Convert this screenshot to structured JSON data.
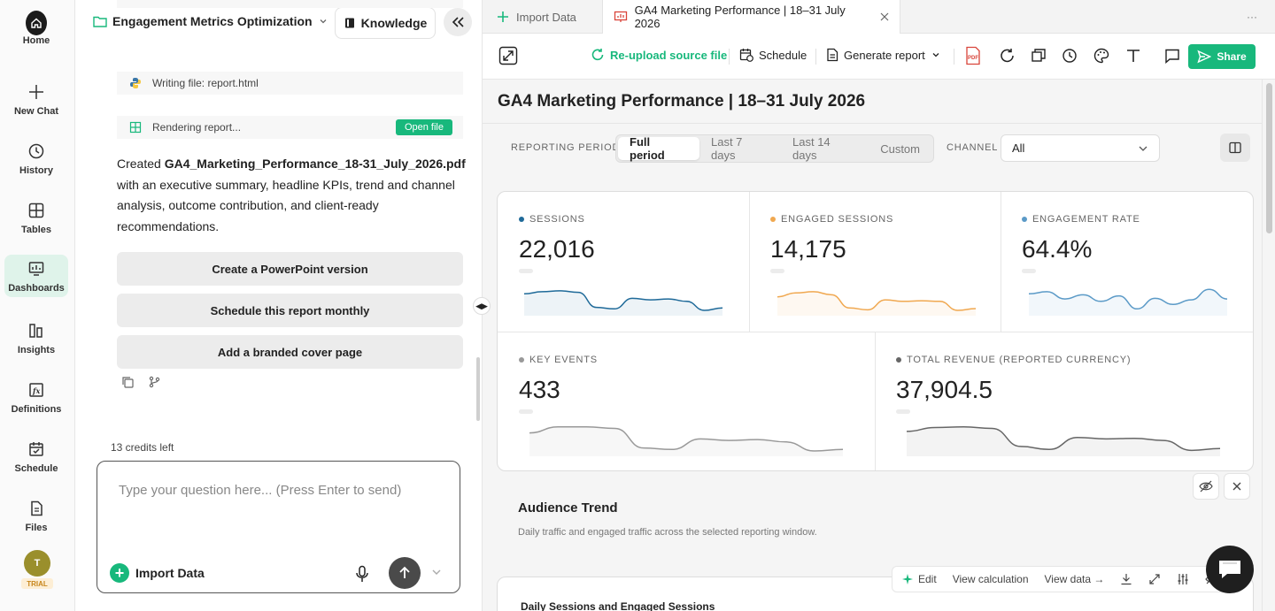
{
  "rail": {
    "items": [
      {
        "label": "Home",
        "icon": "home-icon"
      },
      {
        "label": "New Chat",
        "icon": "plus-icon"
      },
      {
        "label": "History",
        "icon": "history-icon"
      },
      {
        "label": "Tables",
        "icon": "table-icon"
      },
      {
        "label": "Dashboards",
        "icon": "dashboard-icon",
        "active": true
      },
      {
        "label": "Insights",
        "icon": "insights-icon"
      },
      {
        "label": "Definitions",
        "icon": "function-icon"
      },
      {
        "label": "Schedule",
        "icon": "calendar-icon"
      },
      {
        "label": "Files",
        "icon": "files-icon"
      }
    ],
    "avatar": "T",
    "trial": "TRIAL"
  },
  "chat": {
    "project": "Engagement Metrics Optimization",
    "knowledge": "Knowledge",
    "tool1": "Writing file: report.html",
    "tool2": "Rendering report...",
    "open_file": "Open file",
    "msg_pre": "Created ",
    "msg_bold": "GA4_Marketing_Performance_18-31_July_2026.pdf",
    "msg_post": " with an executive summary, headline KPIs, trend and channel analysis, outcome contribution, and client-ready recommendations.",
    "suggestions": [
      "Create a PowerPoint version",
      "Schedule this report monthly",
      "Add a branded cover page"
    ],
    "credits": "13 credits left",
    "placeholder": "Type your question here... (Press Enter to send)",
    "import": "Import Data"
  },
  "tabs": {
    "import": "Import Data",
    "report": "GA4 Marketing Performance | 18–31 July 2026",
    "more": "···"
  },
  "toolbar": {
    "reupload": "Re-upload source file",
    "schedule": "Schedule",
    "generate": "Generate report",
    "pdf": "PDF",
    "share": "Share"
  },
  "report": {
    "title": "GA4 Marketing Performance | 18–31 July 2026",
    "period_label": "REPORTING PERIOD",
    "periods": [
      "Full period",
      "Last 7 days",
      "Last 14 days",
      "Custom"
    ],
    "channel_label": "CHANNEL",
    "channel_value": "All"
  },
  "kpis": [
    {
      "label": "SESSIONS",
      "value": "22,016",
      "color": "#1f6a99",
      "trend": [
        0.55,
        0.62,
        0.65,
        0.6,
        0.1,
        0.05,
        0.4,
        0.35,
        0.38,
        0.3,
        0.0,
        0.08
      ]
    },
    {
      "label": "ENGAGED SESSIONS",
      "value": "14,175",
      "color": "#f0a850",
      "trend": [
        0.45,
        0.58,
        0.62,
        0.52,
        0.08,
        0.02,
        0.35,
        0.3,
        0.32,
        0.3,
        0.0,
        0.06
      ]
    },
    {
      "label": "ENGAGEMENT RATE",
      "value": "64.4%",
      "color": "#5b9ac7",
      "trend": [
        0.55,
        0.62,
        0.38,
        0.52,
        0.3,
        0.48,
        0.05,
        0.4,
        0.2,
        0.35,
        0.7,
        0.38
      ]
    },
    {
      "label": "KEY EVENTS",
      "value": "433",
      "color": "#999999",
      "trend": [
        0.6,
        0.8,
        0.8,
        0.75,
        0.1,
        0.05,
        0.4,
        0.35,
        0.38,
        0.3,
        0.0,
        0.05
      ]
    },
    {
      "label": "TOTAL REVENUE (REPORTED CURRENCY)",
      "value": "37,904.5",
      "color": "#666666",
      "trend": [
        0.65,
        0.78,
        0.8,
        0.75,
        0.15,
        0.05,
        0.45,
        0.4,
        0.42,
        0.35,
        0.02,
        0.08
      ]
    }
  ],
  "section": {
    "title": "Audience Trend",
    "subtitle": "Daily traffic and engaged traffic across the selected reporting window.",
    "chart_title": "Daily Sessions and Engaged Sessions"
  },
  "float_tools": {
    "edit": "Edit",
    "view_calc": "View calculation",
    "view_data": "View data →"
  }
}
